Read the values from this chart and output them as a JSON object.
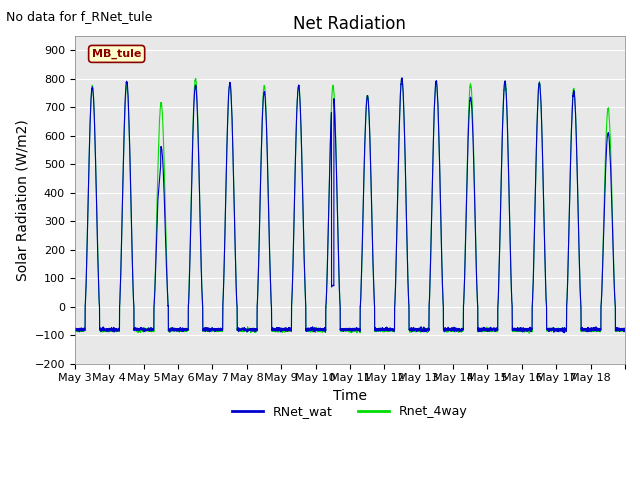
{
  "title": "Net Radiation",
  "xlabel": "Time",
  "ylabel": "Solar Radiation (W/m2)",
  "no_data_text": "No data for f_RNet_tule",
  "site_label": "MB_tule",
  "ylim": [
    -200,
    950
  ],
  "yticks": [
    -200,
    -100,
    0,
    100,
    200,
    300,
    400,
    500,
    600,
    700,
    800,
    900
  ],
  "xticklabels": [
    "May 3",
    "May 4",
    "May 5",
    "May 6",
    "May 7",
    "May 8",
    "May 9",
    "May 10",
    "May 11",
    "May 12",
    "May 13",
    "May 14",
    "May 15",
    "May 16",
    "May 17",
    "May 18"
  ],
  "color_blue": "#0000CD",
  "color_green": "#00DD00",
  "legend_entries": [
    "RNet_wat",
    "Rnet_4way"
  ],
  "background_color": "#E8E8E8",
  "site_label_bg": "#FFFFCC",
  "site_label_border": "#8B0000",
  "title_fontsize": 12,
  "label_fontsize": 10,
  "tick_fontsize": 8,
  "no_data_fontsize": 9,
  "figwidth": 6.4,
  "figheight": 4.8,
  "dpi": 100,
  "peak_wat": [
    770,
    790,
    560,
    775,
    785,
    755,
    775,
    750,
    740,
    800,
    790,
    735,
    790,
    785,
    755,
    610
  ],
  "peak_4way": [
    775,
    775,
    715,
    800,
    780,
    775,
    775,
    775,
    740,
    800,
    785,
    780,
    790,
    785,
    765,
    695
  ],
  "night_wat": -80,
  "night_4way": -82
}
